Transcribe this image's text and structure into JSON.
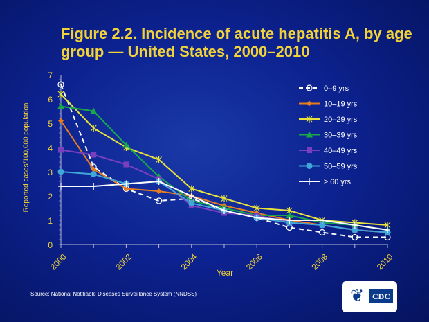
{
  "title": "Figure 2.2. Incidence of acute hepatitis A, by age group — United States, 2000–2010",
  "source": "Source: National Notifiable Diseases Surveillance System (NNDSS)",
  "logo_text": "CDC",
  "chart_data": {
    "type": "line",
    "title": "Figure 2.2. Incidence of acute hepatitis A, by age group — United States, 2000–2010",
    "xlabel": "Year",
    "ylabel": "Reported cases/100,000 population",
    "x": [
      2000,
      2001,
      2002,
      2003,
      2004,
      2005,
      2006,
      2007,
      2008,
      2009,
      2010
    ],
    "xticks": [
      "2000",
      "2002",
      "2004",
      "2006",
      "2008",
      "2010"
    ],
    "yticks": [
      "0",
      "1",
      "2",
      "3",
      "4",
      "5",
      "6",
      "7"
    ],
    "ylim": [
      0,
      7
    ],
    "xlim": [
      2000,
      2010
    ],
    "grid": false,
    "legend": "top-right",
    "series": [
      {
        "name": "0–9 yrs",
        "color": "#ffffff",
        "marker": "open-circle",
        "dash": true,
        "values": [
          6.6,
          3.2,
          2.3,
          1.8,
          1.9,
          1.4,
          1.1,
          0.7,
          0.5,
          0.3,
          0.3
        ]
      },
      {
        "name": "10–19 yrs",
        "color": "#e87d1e",
        "marker": "diamond",
        "values": [
          5.1,
          3.1,
          2.3,
          2.2,
          2.0,
          1.6,
          1.3,
          1.0,
          0.8,
          0.6,
          0.5
        ]
      },
      {
        "name": "20–29 yrs",
        "color": "#e8e23a",
        "marker": "star",
        "values": [
          6.2,
          4.8,
          4.0,
          3.5,
          2.3,
          1.9,
          1.5,
          1.4,
          1.0,
          0.9,
          0.8
        ]
      },
      {
        "name": "30–39 yrs",
        "color": "#1aa64a",
        "marker": "triangle",
        "values": [
          5.7,
          5.5,
          4.1,
          2.8,
          1.8,
          1.5,
          1.2,
          1.2,
          0.9,
          0.8,
          0.6
        ]
      },
      {
        "name": "40–49 yrs",
        "color": "#7a3fbf",
        "marker": "square",
        "values": [
          3.9,
          3.7,
          3.3,
          2.7,
          1.6,
          1.3,
          1.2,
          0.9,
          0.8,
          0.6,
          0.5
        ]
      },
      {
        "name": "50–59 yrs",
        "color": "#3fa8d8",
        "marker": "circle",
        "values": [
          3.0,
          2.9,
          2.5,
          2.6,
          1.7,
          1.4,
          1.1,
          0.9,
          0.8,
          0.6,
          0.5
        ]
      },
      {
        "name": "≥ 60 yrs",
        "color": "#ffffff",
        "marker": "plus",
        "values": [
          2.4,
          2.4,
          2.5,
          2.6,
          2.0,
          1.4,
          1.1,
          1.0,
          1.0,
          0.8,
          0.6
        ]
      }
    ]
  }
}
